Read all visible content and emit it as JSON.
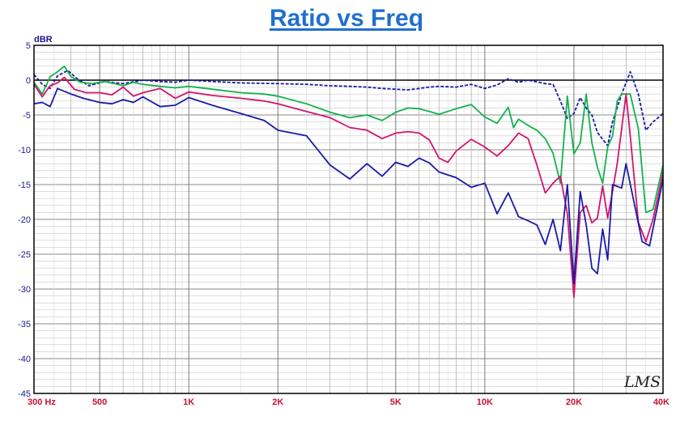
{
  "chart_data": {
    "type": "line",
    "title": "Ratio vs Freq",
    "ylabel": "dBR",
    "xscale": "log",
    "xlim": [
      300,
      40000
    ],
    "ylim": [
      -45,
      5
    ],
    "yticks": [
      5,
      0,
      -5,
      -10,
      -15,
      -20,
      -25,
      -30,
      -35,
      -40,
      -45
    ],
    "xticks": [
      {
        "value": 300,
        "label": "300  Hz"
      },
      {
        "value": 500,
        "label": "500"
      },
      {
        "value": 1000,
        "label": "1K"
      },
      {
        "value": 2000,
        "label": "2K"
      },
      {
        "value": 5000,
        "label": "5K"
      },
      {
        "value": 10000,
        "label": "10K"
      },
      {
        "value": 20000,
        "label": "20K"
      },
      {
        "value": 40000,
        "label": "40K"
      }
    ],
    "grid": true,
    "watermark": "LMS",
    "series": [
      {
        "color": "#000000",
        "style": "solid",
        "points": [
          [
            300,
            0
          ],
          [
            40000,
            0
          ]
        ]
      },
      {
        "color": "#1a1aa8",
        "style": "dashed",
        "points": [
          [
            300,
            0.8
          ],
          [
            320,
            -0.6
          ],
          [
            340,
            -1.2
          ],
          [
            360,
            0.6
          ],
          [
            390,
            1.4
          ],
          [
            420,
            0.2
          ],
          [
            460,
            -0.8
          ],
          [
            520,
            -0.2
          ],
          [
            600,
            -0.5
          ],
          [
            700,
            0
          ],
          [
            800,
            -0.2
          ],
          [
            900,
            -0.3
          ],
          [
            1000,
            0
          ],
          [
            1200,
            -0.2
          ],
          [
            1500,
            -0.4
          ],
          [
            2000,
            -0.5
          ],
          [
            2500,
            -0.6
          ],
          [
            3000,
            -0.8
          ],
          [
            3500,
            -0.9
          ],
          [
            4000,
            -1.0
          ],
          [
            4500,
            -1.2
          ],
          [
            5000,
            -1.3
          ],
          [
            5500,
            -1.4
          ],
          [
            6000,
            -1.2
          ],
          [
            6500,
            -1.0
          ],
          [
            7000,
            -0.9
          ],
          [
            8000,
            -1.0
          ],
          [
            9000,
            -0.6
          ],
          [
            10000,
            -1.2
          ],
          [
            11000,
            -0.7
          ],
          [
            12000,
            0.2
          ],
          [
            13000,
            -0.3
          ],
          [
            14000,
            0.0
          ],
          [
            16000,
            -0.5
          ],
          [
            17000,
            -0.6
          ],
          [
            18000,
            -3.0
          ],
          [
            19000,
            -5.5
          ],
          [
            20000,
            -4.8
          ],
          [
            21000,
            -2.5
          ],
          [
            22000,
            -4.0
          ],
          [
            23000,
            -5.0
          ],
          [
            24000,
            -7.5
          ],
          [
            25000,
            -8.5
          ],
          [
            26000,
            -9.4
          ],
          [
            27000,
            -6.0
          ],
          [
            29000,
            -2.0
          ],
          [
            31000,
            1.2
          ],
          [
            33000,
            -2.0
          ],
          [
            35000,
            -7.2
          ],
          [
            37000,
            -6.0
          ],
          [
            40000,
            -4.8
          ]
        ]
      },
      {
        "color": "#12b24e",
        "style": "solid",
        "points": [
          [
            300,
            -0.3
          ],
          [
            320,
            -2.0
          ],
          [
            340,
            0.5
          ],
          [
            360,
            1.2
          ],
          [
            380,
            2.0
          ],
          [
            400,
            0.5
          ],
          [
            430,
            -0.3
          ],
          [
            470,
            -0.5
          ],
          [
            520,
            -0.2
          ],
          [
            560,
            -0.5
          ],
          [
            600,
            -0.8
          ],
          [
            650,
            -0.3
          ],
          [
            700,
            -0.6
          ],
          [
            800,
            -0.9
          ],
          [
            900,
            -1.1
          ],
          [
            1000,
            -0.9
          ],
          [
            1200,
            -1.3
          ],
          [
            1500,
            -1.8
          ],
          [
            1800,
            -2.0
          ],
          [
            2000,
            -2.3
          ],
          [
            2500,
            -3.4
          ],
          [
            3000,
            -4.6
          ],
          [
            3500,
            -5.4
          ],
          [
            4000,
            -5.0
          ],
          [
            4500,
            -5.8
          ],
          [
            5000,
            -4.6
          ],
          [
            5500,
            -4.0
          ],
          [
            6000,
            -4.1
          ],
          [
            6500,
            -4.5
          ],
          [
            7000,
            -4.9
          ],
          [
            8000,
            -4.1
          ],
          [
            9000,
            -3.5
          ],
          [
            10000,
            -5.3
          ],
          [
            11000,
            -6.2
          ],
          [
            12000,
            -3.9
          ],
          [
            12500,
            -6.8
          ],
          [
            13000,
            -5.6
          ],
          [
            14000,
            -6.5
          ],
          [
            15000,
            -7.2
          ],
          [
            16000,
            -8.4
          ],
          [
            17000,
            -10.5
          ],
          [
            18000,
            -14.8
          ],
          [
            19000,
            -2.3
          ],
          [
            20000,
            -10.6
          ],
          [
            21000,
            -9.0
          ],
          [
            22000,
            -2.0
          ],
          [
            23000,
            -9.0
          ],
          [
            24000,
            -12.5
          ],
          [
            25000,
            -14.8
          ],
          [
            26000,
            -9.6
          ],
          [
            27000,
            -8.0
          ],
          [
            28000,
            -3.0
          ],
          [
            29000,
            -2.0
          ],
          [
            31000,
            -2.0
          ],
          [
            33000,
            -7.0
          ],
          [
            35000,
            -19.0
          ],
          [
            37000,
            -18.6
          ],
          [
            40000,
            -12.2
          ]
        ]
      },
      {
        "color": "#d4146a",
        "style": "solid",
        "points": [
          [
            300,
            -0.6
          ],
          [
            320,
            -2.4
          ],
          [
            340,
            -0.8
          ],
          [
            360,
            -0.4
          ],
          [
            380,
            0.4
          ],
          [
            410,
            -1.3
          ],
          [
            450,
            -1.8
          ],
          [
            500,
            -1.8
          ],
          [
            550,
            -2.1
          ],
          [
            600,
            -1.0
          ],
          [
            650,
            -2.3
          ],
          [
            700,
            -1.8
          ],
          [
            800,
            -1.2
          ],
          [
            900,
            -2.6
          ],
          [
            1000,
            -1.7
          ],
          [
            1200,
            -2.2
          ],
          [
            1500,
            -2.6
          ],
          [
            1800,
            -3.0
          ],
          [
            2000,
            -3.4
          ],
          [
            2500,
            -4.5
          ],
          [
            3000,
            -5.4
          ],
          [
            3500,
            -6.8
          ],
          [
            4000,
            -7.2
          ],
          [
            4500,
            -8.4
          ],
          [
            5000,
            -7.6
          ],
          [
            5500,
            -7.4
          ],
          [
            6000,
            -7.6
          ],
          [
            6500,
            -8.6
          ],
          [
            7000,
            -11.2
          ],
          [
            7500,
            -11.8
          ],
          [
            8000,
            -10.2
          ],
          [
            9000,
            -8.5
          ],
          [
            10000,
            -9.6
          ],
          [
            11000,
            -10.9
          ],
          [
            12000,
            -9.4
          ],
          [
            13000,
            -7.6
          ],
          [
            14000,
            -8.4
          ],
          [
            15000,
            -12.2
          ],
          [
            16000,
            -16.2
          ],
          [
            17000,
            -14.8
          ],
          [
            18000,
            -13.8
          ],
          [
            19000,
            -19.2
          ],
          [
            20000,
            -31.2
          ],
          [
            21000,
            -19.0
          ],
          [
            22000,
            -18.0
          ],
          [
            23000,
            -20.5
          ],
          [
            24000,
            -19.8
          ],
          [
            25000,
            -15.2
          ],
          [
            26000,
            -19.8
          ],
          [
            27000,
            -16.0
          ],
          [
            28000,
            -12.0
          ],
          [
            30000,
            -2.0
          ],
          [
            31000,
            -8.0
          ],
          [
            33000,
            -20.4
          ],
          [
            35000,
            -23.2
          ],
          [
            37000,
            -20.0
          ],
          [
            40000,
            -13.2
          ]
        ]
      },
      {
        "color": "#1a1aa8",
        "style": "solid",
        "points": [
          [
            300,
            -3.4
          ],
          [
            320,
            -3.2
          ],
          [
            340,
            -3.8
          ],
          [
            360,
            -1.2
          ],
          [
            400,
            -2.0
          ],
          [
            440,
            -2.6
          ],
          [
            500,
            -3.2
          ],
          [
            550,
            -3.4
          ],
          [
            600,
            -2.8
          ],
          [
            650,
            -3.2
          ],
          [
            700,
            -2.4
          ],
          [
            800,
            -3.8
          ],
          [
            900,
            -3.6
          ],
          [
            1000,
            -2.5
          ],
          [
            1200,
            -3.6
          ],
          [
            1500,
            -4.8
          ],
          [
            1800,
            -5.8
          ],
          [
            2000,
            -7.2
          ],
          [
            2500,
            -8.0
          ],
          [
            3000,
            -12.2
          ],
          [
            3500,
            -14.2
          ],
          [
            4000,
            -12.0
          ],
          [
            4500,
            -13.8
          ],
          [
            5000,
            -11.8
          ],
          [
            5500,
            -12.4
          ],
          [
            6000,
            -11.2
          ],
          [
            6500,
            -11.9
          ],
          [
            7000,
            -13.2
          ],
          [
            8000,
            -14.0
          ],
          [
            9000,
            -15.4
          ],
          [
            10000,
            -14.8
          ],
          [
            11000,
            -19.2
          ],
          [
            12000,
            -16.2
          ],
          [
            13000,
            -19.6
          ],
          [
            14000,
            -20.2
          ],
          [
            15000,
            -20.8
          ],
          [
            16000,
            -23.6
          ],
          [
            17000,
            -20.0
          ],
          [
            18000,
            -24.5
          ],
          [
            19000,
            -15.0
          ],
          [
            20000,
            -29.2
          ],
          [
            21000,
            -16.0
          ],
          [
            22000,
            -20.8
          ],
          [
            23000,
            -27.0
          ],
          [
            24000,
            -27.8
          ],
          [
            25000,
            -21.4
          ],
          [
            26000,
            -25.8
          ],
          [
            27000,
            -15.0
          ],
          [
            29000,
            -15.5
          ],
          [
            30000,
            -12.0
          ],
          [
            32000,
            -17.8
          ],
          [
            34000,
            -23.2
          ],
          [
            36000,
            -23.8
          ],
          [
            40000,
            -14.2
          ]
        ]
      }
    ]
  }
}
